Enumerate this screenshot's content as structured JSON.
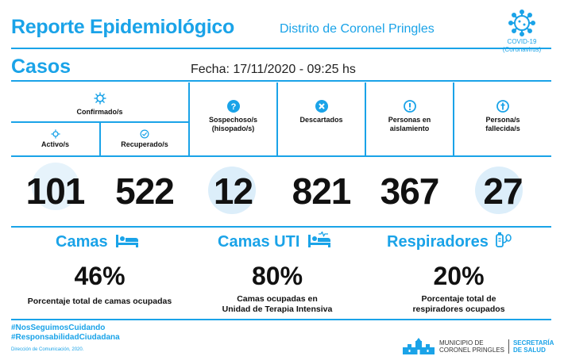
{
  "header": {
    "title": "Reporte Epidemiológico",
    "district": "Distrito de Coronel Pringles",
    "badge_line1": "COVID-19",
    "badge_line2": "(Coronavirus)"
  },
  "casos": {
    "title": "Casos",
    "fecha": "Fecha: 17/11/2020 - 09:25 hs",
    "confirmados_label": "Confirmado/s",
    "columns": [
      {
        "label": "Activo/s",
        "value": "101",
        "icon": "virus-icon"
      },
      {
        "label": "Recuperado/s",
        "value": "522",
        "icon": "check-circle-icon"
      },
      {
        "label_line1": "Sospechoso/s",
        "label_line2": "(hisopado/s)",
        "value": "12",
        "icon": "question-circle-icon"
      },
      {
        "label": "Descartados",
        "value": "821",
        "icon": "x-circle-icon"
      },
      {
        "label_line1": "Personas en",
        "label_line2": "aislamiento",
        "value": "367",
        "icon": "exclamation-circle-icon"
      },
      {
        "label_line1": "Persona/s",
        "label_line2": "fallecida/s",
        "value": "27",
        "icon": "cross-circle-icon"
      }
    ]
  },
  "camas": {
    "title": "Camas",
    "value": "46%",
    "label_line1": "Porcentaje total de camas ocupadas",
    "label_line2": ""
  },
  "camas_uti": {
    "title": "Camas UTI",
    "value": "80%",
    "label_line1": "Camas ocupadas en",
    "label_line2": "Unidad de Terapia Intensiva"
  },
  "respiradores": {
    "title": "Respiradores",
    "value": "20%",
    "label_line1": "Porcentaje total de",
    "label_line2": "respiradores ocupados"
  },
  "footer": {
    "hashtag1": "#NosSeguimosCuidando",
    "hashtag2": "#ResponsabilidadCiudadana",
    "credit": "Dirección de Comunicación, 2020.",
    "muni_line1": "MUNICIPIO DE",
    "muni_line2": "CORONEL PRINGLES",
    "sec_line1": "SECRETARÍA",
    "sec_line2": "DE SALUD"
  },
  "colors": {
    "accent": "#1aa3e8",
    "bubble": "#dceefa"
  }
}
